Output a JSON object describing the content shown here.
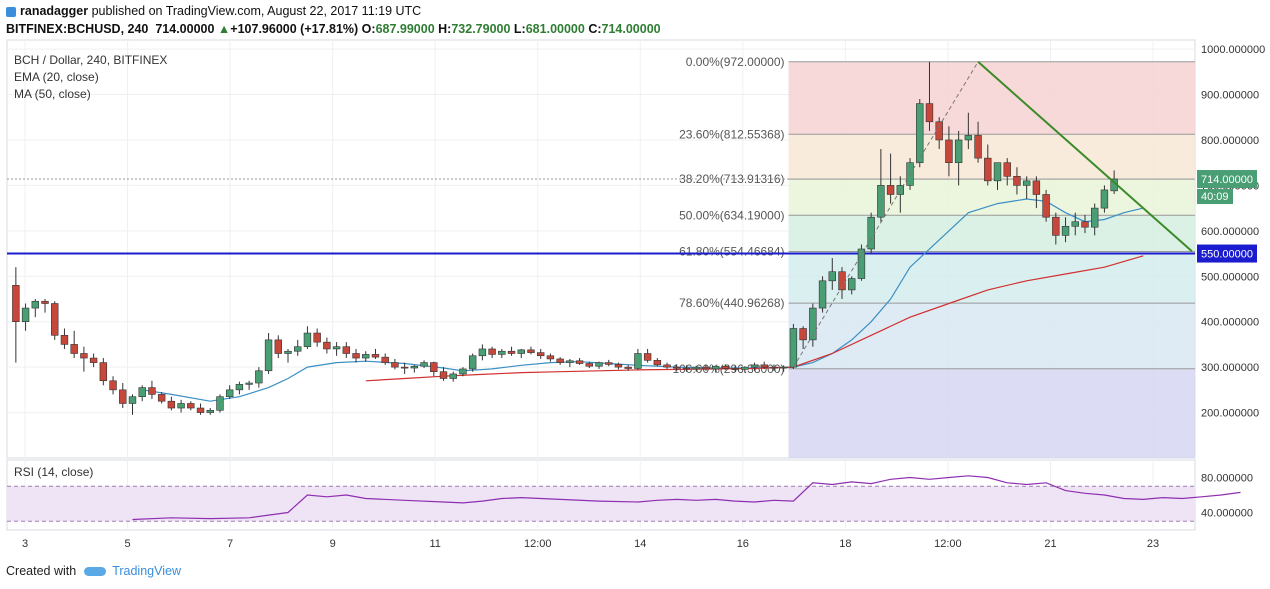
{
  "header": {
    "author": "ranadagger",
    "published_text": "published on TradingView.com, August 22, 2017 11:19 UTC",
    "symbol": "BITFINEX:BCHUSD, 240",
    "last": "714.00000",
    "change": "+107.96000 (+17.81%)",
    "open_label": "O:",
    "open": "687.99000",
    "high_label": "H:",
    "high": "732.79000",
    "low_label": "L:",
    "low": "681.00000",
    "close_label": "C:",
    "close": "714.00000"
  },
  "legend": {
    "line1": "BCH / Dollar, 240, BITFINEX",
    "line2": "EMA (20, close)",
    "line3": "MA (50, close)"
  },
  "footer": {
    "created_with": "Created with",
    "brand": "TradingView"
  },
  "colors": {
    "up": "#4a9e74",
    "down": "#c8473b",
    "ema": "#3b8fc4",
    "ma": "#d22f2f",
    "trend": "#3a8a28",
    "support": "#1c1ccf",
    "grid": "#eef0f3"
  },
  "chart_data": [
    {
      "type": "candlestick",
      "title": "BCH / Dollar, 240, BITFINEX",
      "ylim": [
        100,
        1020
      ],
      "y_ticks": [
        "1000.000000",
        "900.000000",
        "800.000000",
        "700.000000",
        "600.000000",
        "500.000000",
        "400.000000",
        "300.000000",
        "200.000000"
      ],
      "x_tick_labels": [
        "3",
        "5",
        "7",
        "9",
        "11",
        "12:00",
        "14",
        "16",
        "18",
        "12:00",
        "21",
        "23"
      ],
      "last_price_label": "714.00000",
      "countdown_label": "40:09",
      "support_label": "550.00000",
      "candles_ohlc": [
        [
          480,
          520,
          310,
          400
        ],
        [
          400,
          440,
          380,
          430
        ],
        [
          430,
          450,
          410,
          445
        ],
        [
          445,
          450,
          420,
          440
        ],
        [
          440,
          445,
          360,
          370
        ],
        [
          370,
          385,
          340,
          350
        ],
        [
          350,
          380,
          320,
          330
        ],
        [
          330,
          345,
          290,
          320
        ],
        [
          320,
          330,
          300,
          310
        ],
        [
          310,
          320,
          260,
          270
        ],
        [
          270,
          280,
          240,
          250
        ],
        [
          250,
          265,
          210,
          220
        ],
        [
          220,
          240,
          195,
          235
        ],
        [
          235,
          260,
          225,
          255
        ],
        [
          255,
          270,
          230,
          240
        ],
        [
          240,
          245,
          220,
          225
        ],
        [
          225,
          235,
          205,
          210
        ],
        [
          210,
          228,
          200,
          220
        ],
        [
          220,
          225,
          205,
          210
        ],
        [
          210,
          220,
          195,
          200
        ],
        [
          200,
          210,
          195,
          205
        ],
        [
          205,
          240,
          200,
          235
        ],
        [
          235,
          260,
          230,
          250
        ],
        [
          250,
          268,
          240,
          262
        ],
        [
          262,
          270,
          250,
          265
        ],
        [
          265,
          300,
          255,
          292
        ],
        [
          292,
          375,
          285,
          360
        ],
        [
          360,
          370,
          320,
          330
        ],
        [
          330,
          340,
          310,
          335
        ],
        [
          335,
          360,
          325,
          345
        ],
        [
          345,
          390,
          340,
          375
        ],
        [
          375,
          385,
          345,
          355
        ],
        [
          355,
          365,
          330,
          340
        ],
        [
          340,
          355,
          325,
          345
        ],
        [
          345,
          355,
          320,
          330
        ],
        [
          330,
          340,
          310,
          320
        ],
        [
          320,
          335,
          312,
          328
        ],
        [
          328,
          340,
          318,
          322
        ],
        [
          322,
          330,
          305,
          310
        ],
        [
          310,
          318,
          295,
          300
        ],
        [
          300,
          310,
          285,
          298
        ],
        [
          298,
          305,
          288,
          302
        ],
        [
          302,
          315,
          298,
          310
        ],
        [
          310,
          312,
          280,
          290
        ],
        [
          290,
          300,
          270,
          275
        ],
        [
          275,
          290,
          268,
          285
        ],
        [
          285,
          300,
          280,
          296
        ],
        [
          296,
          330,
          290,
          325
        ],
        [
          325,
          350,
          315,
          340
        ],
        [
          340,
          345,
          320,
          328
        ],
        [
          328,
          340,
          320,
          335
        ],
        [
          335,
          345,
          325,
          330
        ],
        [
          330,
          340,
          320,
          338
        ],
        [
          338,
          345,
          328,
          332
        ],
        [
          332,
          340,
          318,
          325
        ],
        [
          325,
          330,
          312,
          318
        ],
        [
          318,
          322,
          305,
          310
        ],
        [
          310,
          318,
          300,
          314
        ],
        [
          314,
          320,
          305,
          308
        ],
        [
          308,
          312,
          298,
          302
        ],
        [
          302,
          312,
          296,
          310
        ],
        [
          310,
          316,
          302,
          306
        ],
        [
          306,
          310,
          295,
          300
        ],
        [
          300,
          305,
          292,
          297
        ],
        [
          297,
          340,
          294,
          330
        ],
        [
          330,
          340,
          310,
          315
        ],
        [
          315,
          320,
          302,
          305
        ],
        [
          305,
          310,
          296,
          300
        ],
        [
          300,
          306,
          292,
          298
        ],
        [
          298,
          304,
          290,
          296
        ],
        [
          296,
          303,
          290,
          300
        ],
        [
          300,
          305,
          292,
          296
        ],
        [
          296,
          304,
          288,
          302
        ],
        [
          302,
          306,
          294,
          297
        ],
        [
          297,
          303,
          290,
          295
        ],
        [
          295,
          302,
          288,
          300
        ],
        [
          300,
          310,
          292,
          305
        ],
        [
          305,
          312,
          296,
          300
        ],
        [
          300,
          306,
          292,
          298
        ],
        [
          298,
          304,
          290,
          300
        ],
        [
          300,
          395,
          296,
          385
        ],
        [
          385,
          390,
          340,
          360
        ],
        [
          360,
          440,
          345,
          430
        ],
        [
          430,
          500,
          420,
          490
        ],
        [
          490,
          540,
          470,
          510
        ],
        [
          510,
          520,
          450,
          470
        ],
        [
          470,
          500,
          460,
          495
        ],
        [
          495,
          570,
          490,
          560
        ],
        [
          560,
          640,
          550,
          630
        ],
        [
          630,
          780,
          620,
          700
        ],
        [
          700,
          770,
          660,
          680
        ],
        [
          680,
          720,
          640,
          700
        ],
        [
          700,
          760,
          690,
          750
        ],
        [
          750,
          890,
          740,
          880
        ],
        [
          880,
          972,
          820,
          840
        ],
        [
          840,
          850,
          780,
          800
        ],
        [
          800,
          830,
          720,
          750
        ],
        [
          750,
          820,
          700,
          800
        ],
        [
          800,
          860,
          780,
          810
        ],
        [
          810,
          840,
          750,
          760
        ],
        [
          760,
          790,
          700,
          710
        ],
        [
          710,
          740,
          690,
          750
        ],
        [
          750,
          760,
          700,
          720
        ],
        [
          720,
          740,
          680,
          700
        ],
        [
          700,
          720,
          670,
          710
        ],
        [
          710,
          720,
          650,
          680
        ],
        [
          680,
          690,
          620,
          630
        ],
        [
          630,
          640,
          570,
          590
        ],
        [
          590,
          630,
          575,
          610
        ],
        [
          610,
          640,
          590,
          620
        ],
        [
          620,
          635,
          595,
          608
        ],
        [
          608,
          660,
          590,
          650
        ],
        [
          650,
          700,
          640,
          690
        ],
        [
          688,
          733,
          681,
          714
        ]
      ],
      "fibonacci": [
        {
          "label": "0.00%(972.00000)",
          "level": 972
        },
        {
          "label": "23.60%(812.55368)",
          "level": 812.55
        },
        {
          "label": "38.20%(713.91316)",
          "level": 713.91
        },
        {
          "label": "50.00%(634.19000)",
          "level": 634.19
        },
        {
          "label": "61.80%(554.46684)",
          "level": 554.47
        },
        {
          "label": "78.60%(440.96268)",
          "level": 440.96
        },
        {
          "label": "100.00%(296.38000)",
          "level": 296.38
        }
      ],
      "support_level": 550,
      "ema_series": [
        [
          13,
          250
        ],
        [
          16,
          240
        ],
        [
          20,
          225
        ],
        [
          23,
          235
        ],
        [
          26,
          255
        ],
        [
          28,
          275
        ],
        [
          30,
          300
        ],
        [
          33,
          310
        ],
        [
          36,
          313
        ],
        [
          40,
          308
        ],
        [
          44,
          298
        ],
        [
          46,
          292
        ],
        [
          49,
          296
        ],
        [
          52,
          304
        ],
        [
          55,
          310
        ],
        [
          58,
          312
        ],
        [
          61,
          308
        ],
        [
          64,
          304
        ],
        [
          68,
          300
        ],
        [
          72,
          298
        ],
        [
          76,
          298
        ],
        [
          80,
          300
        ],
        [
          82,
          310
        ],
        [
          84,
          330
        ],
        [
          86,
          360
        ],
        [
          88,
          400
        ],
        [
          90,
          450
        ],
        [
          92,
          520
        ],
        [
          95,
          580
        ],
        [
          98,
          640
        ],
        [
          101,
          660
        ],
        [
          104,
          670
        ],
        [
          106,
          665
        ],
        [
          108,
          640
        ],
        [
          110,
          620
        ],
        [
          112,
          625
        ],
        [
          114,
          640
        ],
        [
          116,
          650
        ]
      ],
      "ma_series": [
        [
          36,
          270
        ],
        [
          40,
          275
        ],
        [
          44,
          280
        ],
        [
          48,
          284
        ],
        [
          52,
          288
        ],
        [
          56,
          290
        ],
        [
          60,
          292
        ],
        [
          64,
          294
        ],
        [
          68,
          295
        ],
        [
          72,
          296
        ],
        [
          76,
          297
        ],
        [
          80,
          300
        ],
        [
          84,
          330
        ],
        [
          88,
          370
        ],
        [
          92,
          410
        ],
        [
          96,
          440
        ],
        [
          100,
          470
        ],
        [
          104,
          490
        ],
        [
          108,
          505
        ],
        [
          112,
          520
        ],
        [
          116,
          545
        ]
      ],
      "trendline": {
        "from": [
          99,
          972
        ],
        "to": [
          121,
          555
        ]
      }
    },
    {
      "type": "line",
      "title": "RSI (14, close)",
      "ylim": [
        20,
        100
      ],
      "y_ticks": [
        "80.000000",
        "40.000000"
      ],
      "band": [
        30,
        70
      ],
      "points": [
        [
          12,
          32
        ],
        [
          16,
          34
        ],
        [
          20,
          33
        ],
        [
          24,
          34
        ],
        [
          26,
          37
        ],
        [
          28,
          40
        ],
        [
          30,
          60
        ],
        [
          32,
          58
        ],
        [
          34,
          60
        ],
        [
          36,
          56
        ],
        [
          40,
          54
        ],
        [
          44,
          52
        ],
        [
          46,
          51
        ],
        [
          48,
          53
        ],
        [
          50,
          56
        ],
        [
          52,
          57
        ],
        [
          54,
          56
        ],
        [
          56,
          55
        ],
        [
          60,
          53
        ],
        [
          64,
          52
        ],
        [
          66,
          54
        ],
        [
          68,
          55
        ],
        [
          70,
          54
        ],
        [
          72,
          55
        ],
        [
          74,
          53
        ],
        [
          76,
          52
        ],
        [
          78,
          54
        ],
        [
          80,
          53
        ],
        [
          82,
          74
        ],
        [
          84,
          72
        ],
        [
          86,
          75
        ],
        [
          88,
          73
        ],
        [
          90,
          78
        ],
        [
          92,
          80
        ],
        [
          94,
          78
        ],
        [
          96,
          80
        ],
        [
          98,
          82
        ],
        [
          100,
          80
        ],
        [
          102,
          74
        ],
        [
          104,
          72
        ],
        [
          106,
          74
        ],
        [
          108,
          65
        ],
        [
          110,
          62
        ],
        [
          112,
          60
        ],
        [
          114,
          56
        ],
        [
          116,
          55
        ],
        [
          118,
          57
        ],
        [
          120,
          56
        ],
        [
          122,
          58
        ],
        [
          124,
          60
        ],
        [
          126,
          63
        ]
      ]
    }
  ]
}
